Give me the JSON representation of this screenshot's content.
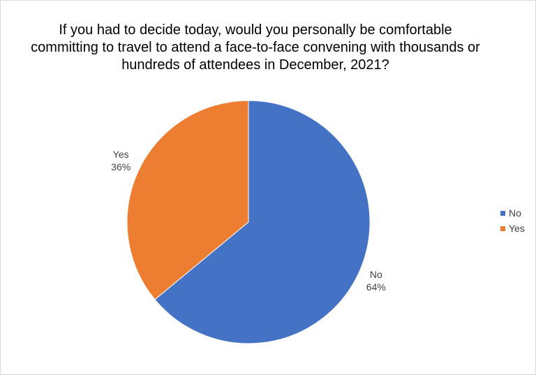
{
  "chart_data": {
    "type": "pie",
    "title": "If you had to decide today, would you personally be comfortable committing to travel to attend a face-to-face convening with thousands or hundreds of attendees in December, 2021?",
    "slices": [
      {
        "label": "No",
        "value": 64,
        "value_label": "64%",
        "color": "#4472c4"
      },
      {
        "label": "Yes",
        "value": 36,
        "value_label": "36%",
        "color": "#ed7d31"
      }
    ],
    "legend": {
      "position": "right",
      "entries": [
        "No",
        "Yes"
      ]
    },
    "data_labels": true
  }
}
